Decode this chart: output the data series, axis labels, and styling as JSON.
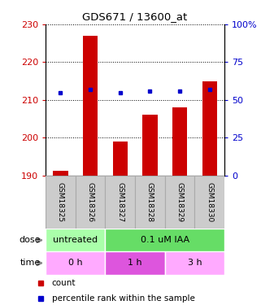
{
  "title": "GDS671 / 13600_at",
  "categories": [
    "GSM18325",
    "GSM18326",
    "GSM18327",
    "GSM18328",
    "GSM18329",
    "GSM18330"
  ],
  "bar_values": [
    191.2,
    227.0,
    199.0,
    206.0,
    208.0,
    215.0
  ],
  "bar_base": 190,
  "bar_color": "#cc0000",
  "dot_pct_values": [
    55,
    57,
    55,
    56,
    56,
    57
  ],
  "dot_color": "#0000cc",
  "ylim_left": [
    190,
    230
  ],
  "ylim_right": [
    0,
    100
  ],
  "yticks_left": [
    190,
    200,
    210,
    220,
    230
  ],
  "yticks_right": [
    0,
    25,
    50,
    75,
    100
  ],
  "ytick_labels_right": [
    "0",
    "25",
    "50",
    "75",
    "100%"
  ],
  "ytick_color_left": "#cc0000",
  "ytick_color_right": "#0000cc",
  "doses": [
    {
      "text": "untreated",
      "xstart": 0,
      "xend": 2,
      "color": "#aaffaa"
    },
    {
      "text": "0.1 uM IAA",
      "xstart": 2,
      "xend": 6,
      "color": "#66dd66"
    }
  ],
  "times": [
    {
      "text": "0 h",
      "xstart": 0,
      "xend": 2,
      "color": "#ffaaff"
    },
    {
      "text": "1 h",
      "xstart": 2,
      "xend": 4,
      "color": "#dd55dd"
    },
    {
      "text": "3 h",
      "xstart": 4,
      "xend": 6,
      "color": "#ffaaff"
    }
  ],
  "panel_bg": "#cccccc",
  "panel_edge": "#aaaaaa",
  "dose_label": "dose",
  "time_label": "time",
  "legend_count_label": "count",
  "legend_pct_label": "percentile rank within the sample"
}
